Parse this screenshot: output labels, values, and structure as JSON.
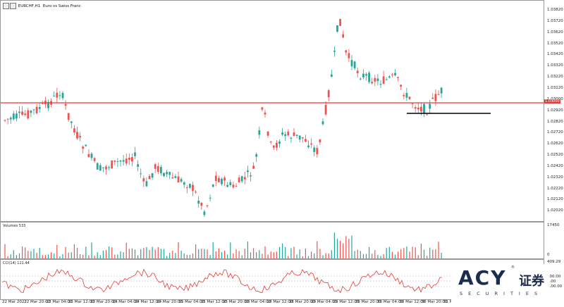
{
  "header": {
    "symbol": "EURCHF,H1",
    "description": "Euro vs Swiss Franc"
  },
  "price_axis": {
    "labels": [
      "1.03820",
      "1.03720",
      "1.03620",
      "1.03520",
      "1.03420",
      "1.03320",
      "1.03220",
      "1.03120",
      "1.03000",
      "1.02920",
      "1.02820",
      "1.02720",
      "1.02620",
      "1.02520",
      "1.02420",
      "1.02320",
      "1.02220",
      "1.02120",
      "1.02020"
    ],
    "current_price": "1.03000"
  },
  "volume_panel": {
    "label": "Volumes 533",
    "axis_top": "17450",
    "axis_bottom": "0"
  },
  "cci_panel": {
    "label": "CCI(14) 121.44",
    "axis": [
      "409.29",
      "100.00",
      "0.00",
      "-100.00",
      "-"
    ]
  },
  "time_axis": {
    "labels": [
      "22 Mar 2022",
      "22 Mar 20:00",
      "23 Mar 04:00",
      "23 Mar 12:00",
      "23 Mar 20:00",
      "24 Mar 04:00",
      "24 Mar 12:00",
      "24 Mar 20:00",
      "25 Mar 04:00",
      "25 Mar 12:00",
      "25 Mar 20:00",
      "28 Mar 04:00",
      "28 Mar 12:00",
      "28 Mar 20:00",
      "29 Mar 04:00",
      "29 Mar 12:00",
      "29 Mar 20:00",
      "30 Mar 04:00",
      "30 Mar 12:00",
      "30 Mar 20:00",
      "31 Mar 04:00"
    ]
  },
  "logo": {
    "brand": "ACY",
    "chinese": "证券",
    "tagline": "SECURITIES",
    "registered": "®"
  },
  "colors": {
    "bull": "#26a69a",
    "bear": "#ef5350",
    "horizontal_line": "#e53935",
    "support_line": "#000000",
    "cci_line": "#e53935"
  }
}
